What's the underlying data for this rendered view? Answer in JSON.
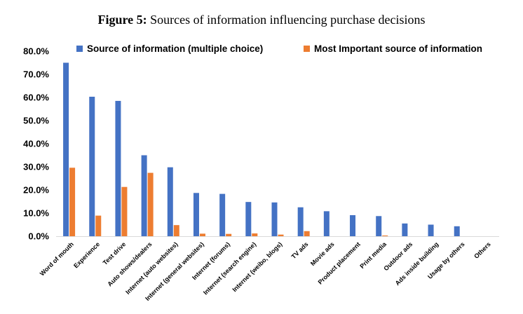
{
  "caption": {
    "label": "Figure 5:",
    "text": "Sources of information influencing purchase decisions"
  },
  "chart_data": {
    "type": "bar",
    "title": "Sources of information influencing purchase decisions",
    "xlabel": "",
    "ylabel": "",
    "ylim": [
      0,
      80
    ],
    "yticks": [
      0,
      10,
      20,
      30,
      40,
      50,
      60,
      70,
      80
    ],
    "ytick_labels": [
      "0.0%",
      "10.0%",
      "20.0%",
      "30.0%",
      "40.0%",
      "50.0%",
      "60.0%",
      "70.0%",
      "80.0%"
    ],
    "grid": false,
    "legend_position": "top",
    "categories": [
      "Word of mouth",
      "Experience",
      "Test drive",
      "Auto shows/dealers",
      "Internet (auto websites)",
      "Internet (general websites)",
      "Internet (forums)",
      "Internet (search engine)",
      "Internet (weibo, blogs)",
      "TV ads",
      "Movie ads",
      "Product placement",
      "Print media",
      "Outdoor ads",
      "Ads inside building",
      "Usage by others",
      "Others"
    ],
    "series": [
      {
        "name": "Source of information (multiple choice)",
        "color": "#4472C4",
        "values": [
          75.0,
          60.3,
          58.5,
          35.0,
          29.8,
          18.7,
          18.3,
          14.8,
          14.6,
          12.5,
          10.8,
          9.1,
          8.7,
          5.5,
          5.0,
          4.3,
          0.0
        ]
      },
      {
        "name": "Most Important source of information",
        "color": "#ED7D31",
        "values": [
          29.6,
          8.9,
          21.3,
          27.4,
          4.8,
          1.1,
          1.0,
          1.2,
          0.7,
          2.2,
          0.0,
          0.0,
          0.3,
          0.0,
          0.0,
          0.0,
          0.0
        ]
      }
    ]
  }
}
